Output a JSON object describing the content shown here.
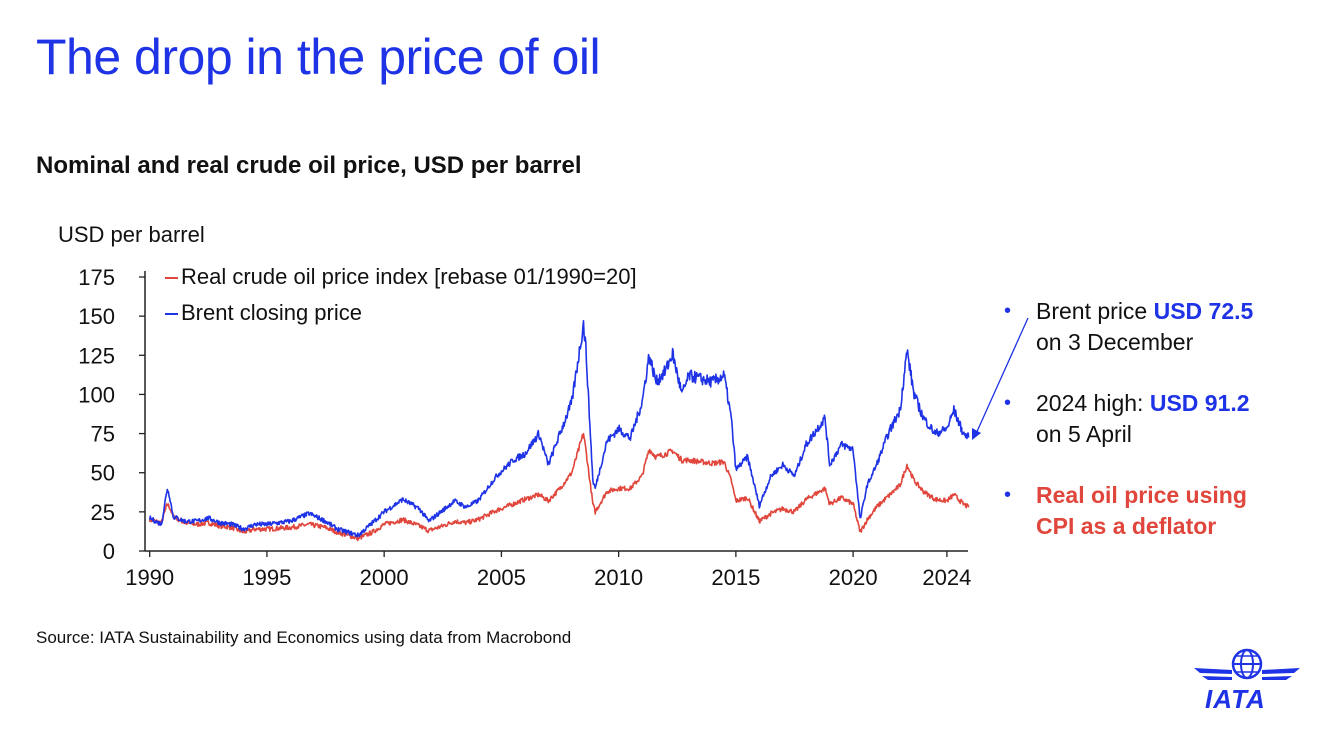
{
  "slide_title": "The drop in the price of oil",
  "chart_title": "Nominal and real crude oil price, USD per barrel",
  "colors": {
    "blue": "#1e32e6",
    "red": "#e0463c",
    "axis": "#222222"
  },
  "annotations": {
    "brent": {
      "prefix": "Brent price ",
      "value": "USD 72.5",
      "suffix": "on 3 December"
    },
    "high": {
      "prefix": "2024 high: ",
      "value": "USD 91.2",
      "suffix": "on 5 April"
    },
    "real": {
      "line1": "Real oil price using",
      "line2": "CPI as a deflator"
    }
  },
  "source": "Source: IATA Sustainability and Economics using data from Macrobond",
  "logo": {
    "text": "IATA",
    "icon": "globe-wings-icon"
  },
  "chart_data": {
    "type": "line",
    "title": "Nominal and real crude oil price, USD per barrel",
    "ylabel": "USD per barrel",
    "xlabel": "",
    "xlim": [
      1989.8,
      2024.9
    ],
    "ylim": [
      0,
      175
    ],
    "yticks": [
      0,
      25,
      50,
      75,
      100,
      125,
      150,
      175
    ],
    "xticks": [
      1990,
      1995,
      2000,
      2005,
      2010,
      2015,
      2020,
      2024
    ],
    "legend_position": "top-left",
    "series": [
      {
        "name": "Real crude oil price index [rebase 01/1990=20]",
        "color": "#e0463c",
        "points": [
          [
            1990.0,
            20
          ],
          [
            1990.5,
            18
          ],
          [
            1990.75,
            30
          ],
          [
            1990.85,
            28
          ],
          [
            1991.0,
            22
          ],
          [
            1991.5,
            18
          ],
          [
            1992.0,
            17
          ],
          [
            1992.5,
            18
          ],
          [
            1993.0,
            16
          ],
          [
            1993.5,
            15
          ],
          [
            1994.0,
            12
          ],
          [
            1994.5,
            14
          ],
          [
            1995.0,
            14
          ],
          [
            1996.0,
            15
          ],
          [
            1996.8,
            17
          ],
          [
            1997.5,
            15
          ],
          [
            1998.0,
            12
          ],
          [
            1998.9,
            8
          ],
          [
            1999.5,
            12
          ],
          [
            2000.0,
            17
          ],
          [
            2000.8,
            20
          ],
          [
            2001.5,
            16
          ],
          [
            2001.9,
            13
          ],
          [
            2002.5,
            16
          ],
          [
            2003.0,
            19
          ],
          [
            2003.5,
            18
          ],
          [
            2004.0,
            20
          ],
          [
            2004.8,
            26
          ],
          [
            2005.5,
            30
          ],
          [
            2006.0,
            33
          ],
          [
            2006.6,
            36
          ],
          [
            2007.0,
            32
          ],
          [
            2007.5,
            40
          ],
          [
            2008.0,
            50
          ],
          [
            2008.5,
            75
          ],
          [
            2008.6,
            65
          ],
          [
            2008.9,
            30
          ],
          [
            2009.0,
            25
          ],
          [
            2009.5,
            38
          ],
          [
            2010.0,
            40
          ],
          [
            2010.5,
            40
          ],
          [
            2011.0,
            48
          ],
          [
            2011.3,
            65
          ],
          [
            2011.6,
            60
          ],
          [
            2012.0,
            62
          ],
          [
            2012.3,
            64
          ],
          [
            2012.7,
            58
          ],
          [
            2013.0,
            58
          ],
          [
            2014.0,
            56
          ],
          [
            2014.5,
            57
          ],
          [
            2014.8,
            45
          ],
          [
            2015.0,
            32
          ],
          [
            2015.5,
            34
          ],
          [
            2016.0,
            19
          ],
          [
            2016.5,
            24
          ],
          [
            2017.0,
            27
          ],
          [
            2017.5,
            25
          ],
          [
            2018.0,
            33
          ],
          [
            2018.8,
            40
          ],
          [
            2019.0,
            30
          ],
          [
            2019.5,
            34
          ],
          [
            2020.0,
            30
          ],
          [
            2020.3,
            12
          ],
          [
            2020.6,
            20
          ],
          [
            2021.0,
            28
          ],
          [
            2021.5,
            35
          ],
          [
            2022.0,
            42
          ],
          [
            2022.3,
            55
          ],
          [
            2022.6,
            45
          ],
          [
            2023.0,
            38
          ],
          [
            2023.5,
            33
          ],
          [
            2024.0,
            32
          ],
          [
            2024.3,
            36
          ],
          [
            2024.7,
            30
          ],
          [
            2024.93,
            28
          ]
        ]
      },
      {
        "name": "Brent closing price",
        "color": "#1e32e6",
        "points": [
          [
            1990.0,
            21
          ],
          [
            1990.5,
            17
          ],
          [
            1990.75,
            40
          ],
          [
            1990.85,
            35
          ],
          [
            1991.0,
            22
          ],
          [
            1991.5,
            19
          ],
          [
            1992.0,
            19
          ],
          [
            1992.5,
            21
          ],
          [
            1993.0,
            18
          ],
          [
            1993.5,
            17
          ],
          [
            1994.0,
            14
          ],
          [
            1994.5,
            17
          ],
          [
            1995.0,
            17
          ],
          [
            1996.0,
            19
          ],
          [
            1996.8,
            24
          ],
          [
            1997.5,
            19
          ],
          [
            1998.0,
            14
          ],
          [
            1998.9,
            10
          ],
          [
            1999.5,
            18
          ],
          [
            2000.0,
            25
          ],
          [
            2000.8,
            33
          ],
          [
            2001.5,
            27
          ],
          [
            2001.9,
            19
          ],
          [
            2002.5,
            26
          ],
          [
            2003.0,
            32
          ],
          [
            2003.5,
            28
          ],
          [
            2004.0,
            32
          ],
          [
            2004.8,
            48
          ],
          [
            2005.5,
            58
          ],
          [
            2006.0,
            62
          ],
          [
            2006.6,
            75
          ],
          [
            2007.0,
            55
          ],
          [
            2007.5,
            75
          ],
          [
            2008.0,
            95
          ],
          [
            2008.5,
            145
          ],
          [
            2008.6,
            130
          ],
          [
            2008.9,
            45
          ],
          [
            2009.0,
            40
          ],
          [
            2009.5,
            70
          ],
          [
            2010.0,
            78
          ],
          [
            2010.5,
            72
          ],
          [
            2011.0,
            95
          ],
          [
            2011.3,
            125
          ],
          [
            2011.6,
            108
          ],
          [
            2012.0,
            115
          ],
          [
            2012.3,
            126
          ],
          [
            2012.7,
            100
          ],
          [
            2013.0,
            112
          ],
          [
            2014.0,
            108
          ],
          [
            2014.5,
            112
          ],
          [
            2014.8,
            85
          ],
          [
            2015.0,
            52
          ],
          [
            2015.5,
            60
          ],
          [
            2016.0,
            29
          ],
          [
            2016.5,
            48
          ],
          [
            2017.0,
            55
          ],
          [
            2017.5,
            48
          ],
          [
            2018.0,
            68
          ],
          [
            2018.8,
            85
          ],
          [
            2019.0,
            55
          ],
          [
            2019.5,
            68
          ],
          [
            2020.0,
            65
          ],
          [
            2020.3,
            20
          ],
          [
            2020.6,
            42
          ],
          [
            2021.0,
            55
          ],
          [
            2021.5,
            75
          ],
          [
            2022.0,
            90
          ],
          [
            2022.3,
            128
          ],
          [
            2022.6,
            100
          ],
          [
            2023.0,
            85
          ],
          [
            2023.5,
            75
          ],
          [
            2024.0,
            78
          ],
          [
            2024.3,
            90
          ],
          [
            2024.7,
            75
          ],
          [
            2024.93,
            72.5
          ]
        ]
      }
    ]
  }
}
